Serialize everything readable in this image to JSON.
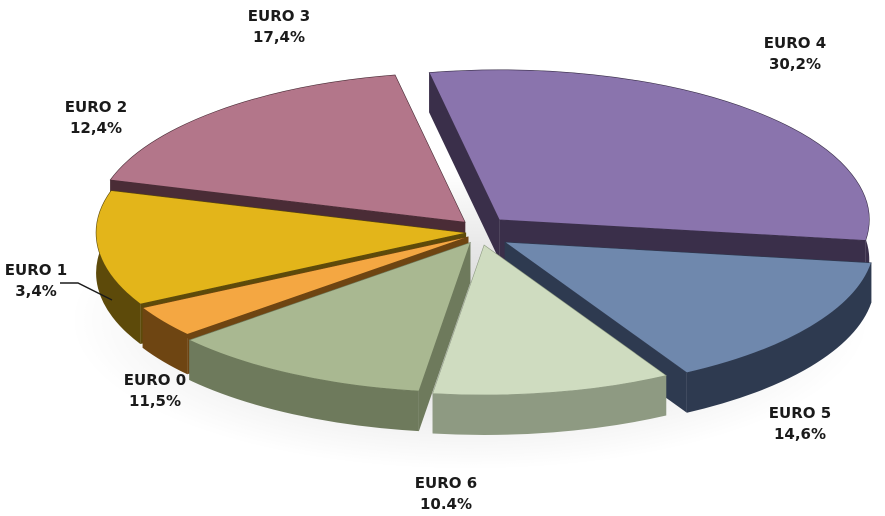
{
  "chart_data": {
    "type": "pie",
    "style": "3d-exploded",
    "legend": "none",
    "slices": [
      {
        "label": "EURO 0",
        "value_text": "11,5%",
        "value": 11.5,
        "color": "#a9b891",
        "dark": "#6e7a5c"
      },
      {
        "label": "EURO 1",
        "value_text": "3,4%",
        "value": 3.4,
        "color": "#f4a742",
        "dark": "#6e4512"
      },
      {
        "label": "EURO 2",
        "value_text": "12,4%",
        "value": 12.4,
        "color": "#e3b51a",
        "dark": "#5d4a0a"
      },
      {
        "label": "EURO 3",
        "value_text": "17,4%",
        "value": 17.4,
        "color": "#b3768a",
        "dark": "#4a2c36"
      },
      {
        "label": "EURO 4",
        "value_text": "30,2%",
        "value": 30.2,
        "color": "#8a74ad",
        "dark": "#3a2f4a"
      },
      {
        "label": "EURO 5",
        "value_text": "14,6%",
        "value": 14.6,
        "color": "#6f88ad",
        "dark": "#2e3a50"
      },
      {
        "label": "EURO 6",
        "value_text": "10.4%",
        "value": 10.4,
        "color": "#cfdcc0",
        "dark": "#8e9a82"
      }
    ]
  }
}
